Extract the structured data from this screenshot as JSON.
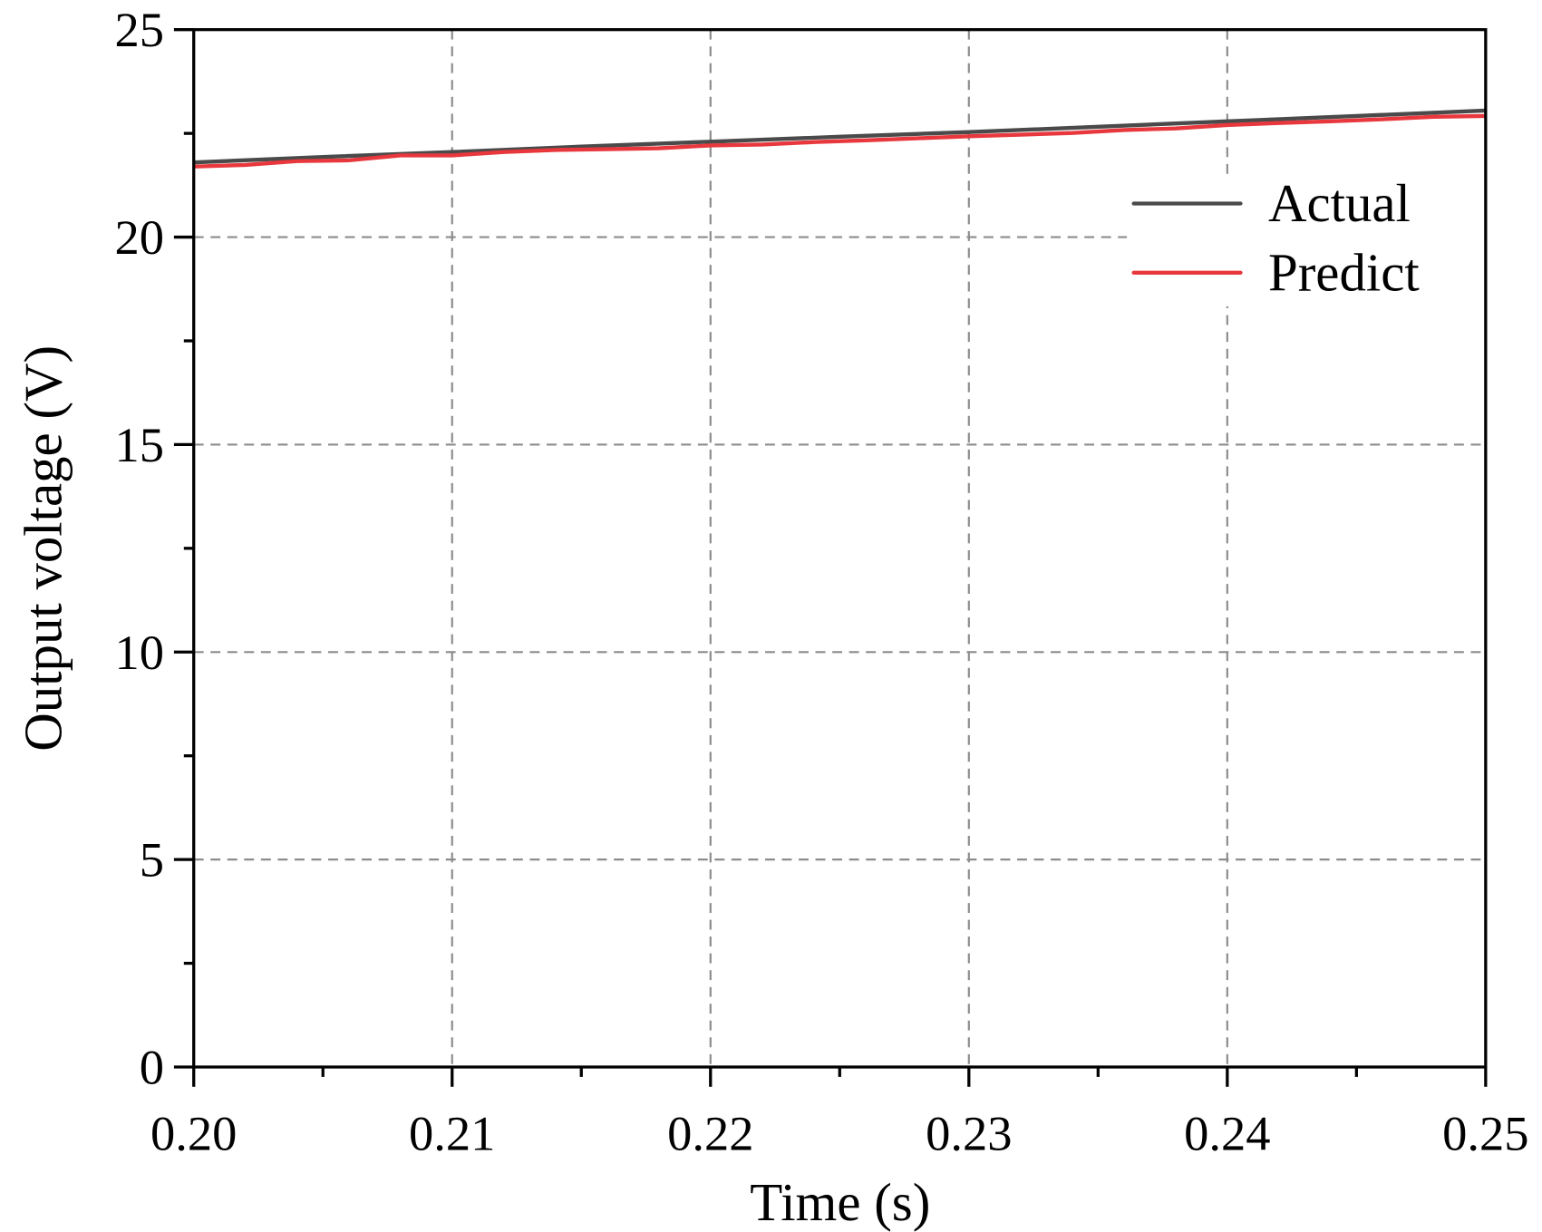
{
  "chart_data": {
    "type": "line",
    "title": "",
    "xlabel": "Time (s)",
    "ylabel": "Output voltage (V)",
    "xlim": [
      0.2,
      0.25
    ],
    "ylim": [
      0,
      25
    ],
    "xticks": [
      "0.20",
      "0.21",
      "0.22",
      "0.23",
      "0.24",
      "0.25"
    ],
    "yticks": [
      "0",
      "5",
      "10",
      "15",
      "20",
      "25"
    ],
    "grid": true,
    "legend_position": "upper right",
    "series": [
      {
        "name": "Actual",
        "color": "#4a4a4a",
        "x": [
          0.2,
          0.205,
          0.21,
          0.215,
          0.22,
          0.225,
          0.23,
          0.235,
          0.24,
          0.245,
          0.25
        ],
        "y": [
          21.8,
          21.93,
          22.05,
          22.18,
          22.3,
          22.42,
          22.53,
          22.66,
          22.79,
          22.92,
          23.05
        ]
      },
      {
        "name": "Predict",
        "color": "#e8383d",
        "x": [
          0.2,
          0.202,
          0.204,
          0.206,
          0.208,
          0.21,
          0.212,
          0.214,
          0.216,
          0.218,
          0.22,
          0.222,
          0.224,
          0.226,
          0.228,
          0.23,
          0.232,
          0.234,
          0.236,
          0.238,
          0.24,
          0.242,
          0.244,
          0.246,
          0.248,
          0.25
        ],
        "y": [
          21.7,
          21.74,
          21.83,
          21.85,
          21.97,
          21.97,
          22.05,
          22.1,
          22.12,
          22.14,
          22.21,
          22.23,
          22.29,
          22.33,
          22.38,
          22.43,
          22.47,
          22.51,
          22.58,
          22.62,
          22.7,
          22.75,
          22.79,
          22.84,
          22.9,
          22.92
        ]
      }
    ]
  }
}
